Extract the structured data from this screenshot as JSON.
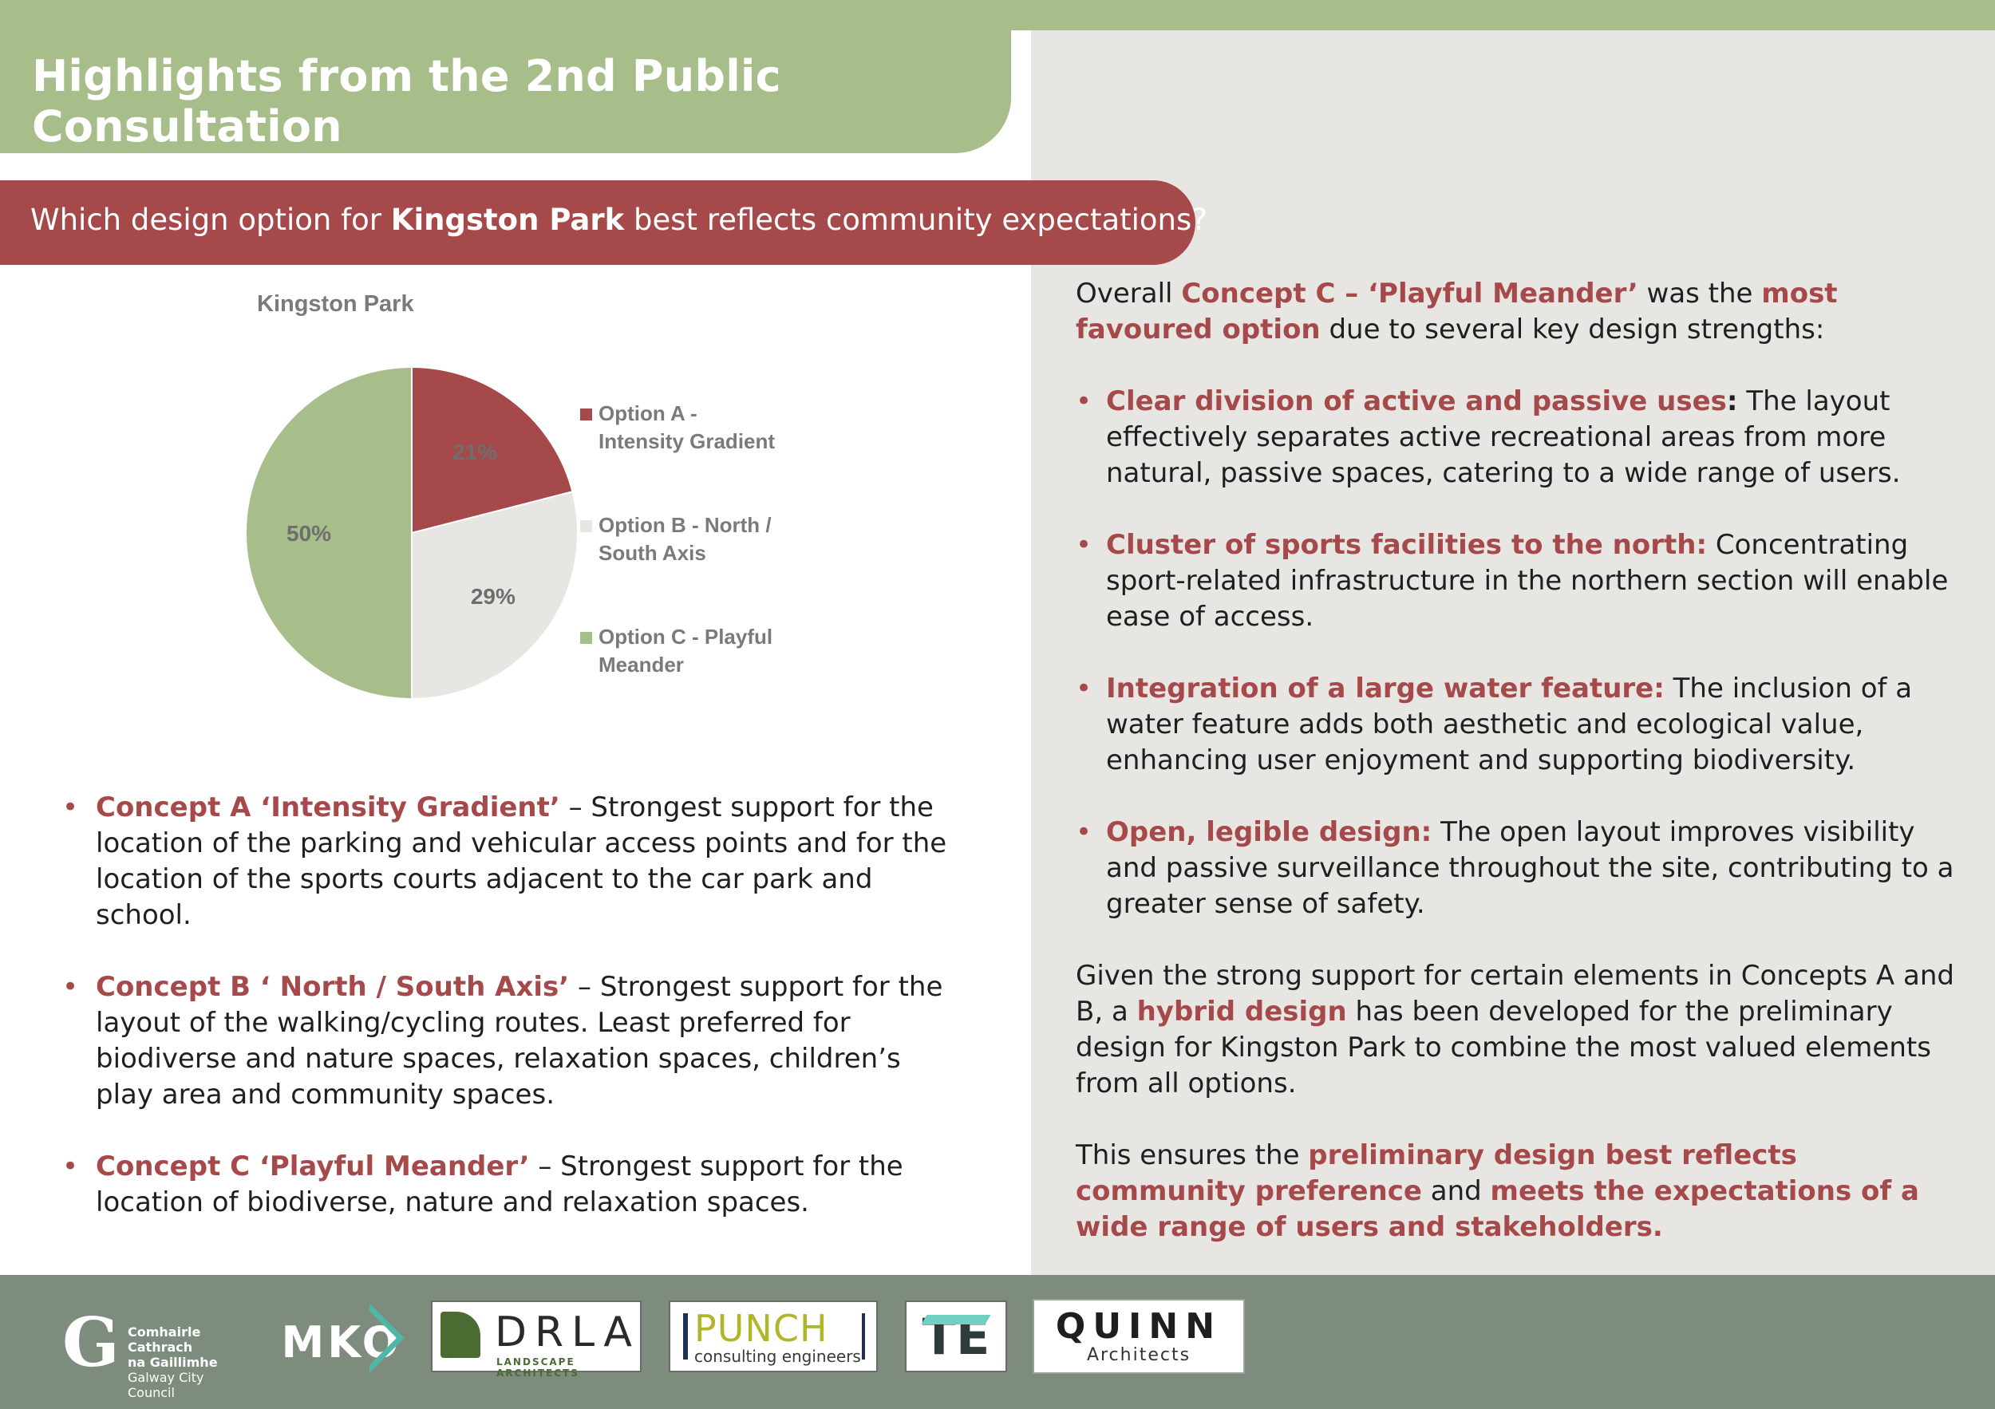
{
  "header": {
    "title": "Highlights from the 2nd Public Consultation"
  },
  "question": {
    "pre": "Which design option for ",
    "bold": "Kingston Park",
    "post": " best reflects community expectations?"
  },
  "colors": {
    "accent_red": "#a5494b",
    "green": "#a7bd8a",
    "light_grey": "#e8e6e2",
    "footer": "#7d8c7c"
  },
  "chart_data": {
    "type": "pie",
    "title": "Kingston Park",
    "categories": [
      "Option A - Intensity Gradient",
      "Option B - North / South Axis",
      "Option C - Playful Meander"
    ],
    "values": [
      21,
      29,
      50
    ],
    "labels": [
      "21%",
      "29%",
      "50%"
    ],
    "colors": [
      "#a5494b",
      "#e8e6e2",
      "#a7bd8a"
    ],
    "legend": {
      "position": "right",
      "entries": [
        [
          "Option A -",
          "Intensity Gradient"
        ],
        [
          "Option B - North /",
          "South Axis"
        ],
        [
          "Option C - Playful",
          "Meander"
        ]
      ]
    }
  },
  "left_bullets": [
    {
      "title": "Concept A ‘Intensity Gradient’",
      "text": " – Strongest support for the location of the parking and vehicular access points and for the location of the sports courts adjacent to the car park and school."
    },
    {
      "title": "Concept B ‘ North / South Axis’",
      "text": " – Strongest support for the layout of the walking/cycling routes. Least preferred for biodiverse and nature spaces, relaxation spaces, children’s play area and community spaces."
    },
    {
      "title": "Concept C ‘Playful Meander’",
      "text": " – Strongest support for the location of biodiverse, nature and relaxation spaces."
    }
  ],
  "right": {
    "intro": {
      "p1": "Overall ",
      "h1": "Concept C – ‘Playful Meander’",
      "p2": " was the ",
      "h2": "most favoured option",
      "p3": " due to several key design strengths:"
    },
    "bullets": [
      {
        "title": "Clear division of active and passive uses",
        "sep": ":",
        "text": " The layout effectively separates active recreational areas from more natural, passive spaces, catering to a wide range of users."
      },
      {
        "title": "Cluster of sports facilities to the north:",
        "sep": "",
        "text": " Concentrating sport-related infrastructure in the northern section will enable ease of access."
      },
      {
        "title": "Integration of a large water feature:",
        "sep": "",
        "text": " The inclusion of a water feature adds both aesthetic and ecological value, enhancing user enjoyment and supporting biodiversity."
      },
      {
        "title": "Open, legible design:",
        "sep": "",
        "text": " The open layout improves visibility and passive surveillance throughout the site, contributing to a greater sense of safety."
      }
    ],
    "para2": {
      "p1": "Given the strong support for certain elements in Concepts A and B, a ",
      "h1": "hybrid design",
      "p2": " has been developed for the preliminary design for Kingston Park to combine the most valued elements from all options."
    },
    "para3": {
      "p1": "This ensures the ",
      "h1": "preliminary design best reflects community preference",
      "p2": " and ",
      "h2": "meets the expectations of a wide range of users and stakeholders."
    }
  },
  "footer": {
    "gcc": {
      "g": "G",
      "line1": "Comhairle Cathrach",
      "line2": "na Gaillimhe",
      "line3": "Galway City Council"
    },
    "mko": "MKO",
    "drla": {
      "name": "DRLA",
      "sub": "LANDSCAPE ARCHITECTS"
    },
    "punch": {
      "name": "PUNCH",
      "sub": "consulting engineers"
    },
    "te": "TE",
    "quinn": {
      "name": "QUINN",
      "sub": "Architects"
    }
  }
}
